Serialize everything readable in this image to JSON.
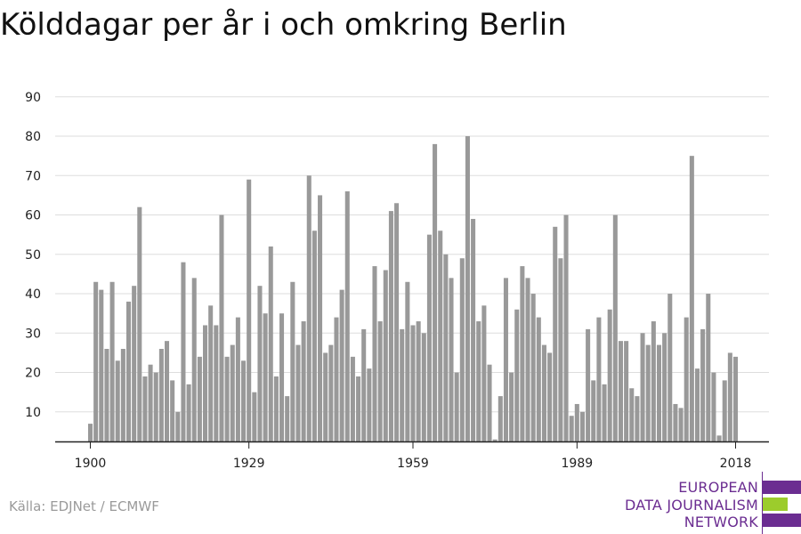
{
  "colors": {
    "bar": "#999999",
    "grid": "#dddddd",
    "axis": "#222222",
    "purple": "#6b2d91",
    "green": "#9ccc2c"
  },
  "source": "Källa: EDJNet / ECMWF",
  "logo": {
    "lines": [
      "EUROPEAN",
      "DATA JOURNALISM",
      "NETWORK"
    ]
  },
  "chart_data": {
    "type": "bar",
    "title": "Kölddagar per år i och omkring Berlin",
    "xlabel": "",
    "ylabel": "",
    "x_start": 1900,
    "x_end": 2018,
    "ylim": [
      2.5,
      93
    ],
    "y_ticks": [
      10,
      20,
      30,
      40,
      50,
      60,
      70,
      80,
      90
    ],
    "x_ticks": [
      1900,
      1929,
      1959,
      1989,
      2018
    ],
    "grid": true,
    "values": [
      7,
      43,
      41,
      26,
      43,
      23,
      26,
      38,
      42,
      62,
      19,
      22,
      20,
      26,
      28,
      18,
      10,
      48,
      17,
      44,
      24,
      32,
      37,
      32,
      60,
      24,
      27,
      34,
      23,
      69,
      15,
      42,
      35,
      52,
      19,
      35,
      14,
      43,
      27,
      33,
      70,
      56,
      65,
      25,
      27,
      34,
      41,
      66,
      24,
      19,
      31,
      21,
      47,
      33,
      46,
      61,
      63,
      31,
      43,
      32,
      33,
      30,
      55,
      78,
      56,
      50,
      44,
      20,
      49,
      80,
      59,
      33,
      37,
      22,
      3,
      14,
      44,
      20,
      36,
      47,
      44,
      40,
      34,
      27,
      25,
      57,
      49,
      60,
      9,
      12,
      10,
      31,
      18,
      34,
      17,
      36,
      60,
      28,
      28,
      16,
      14,
      30,
      27,
      33,
      27,
      30,
      40,
      12,
      11,
      34,
      75,
      21,
      31,
      40,
      20,
      4,
      18,
      25,
      24
    ]
  }
}
